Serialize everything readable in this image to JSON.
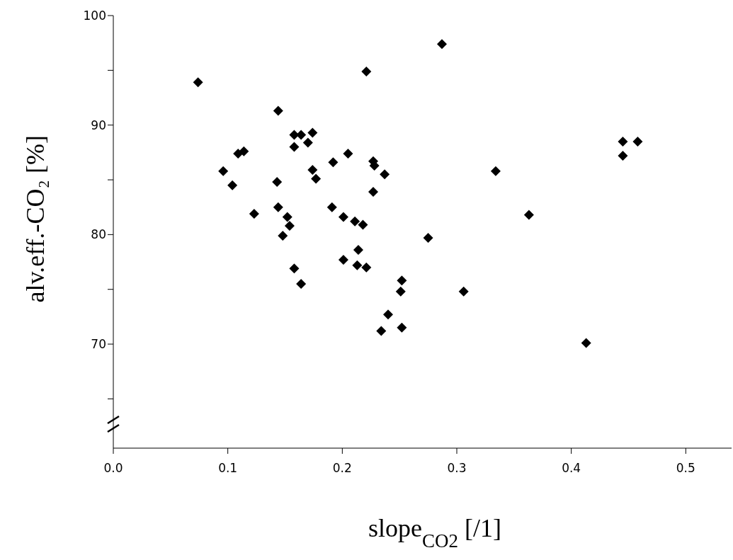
{
  "chart_data": {
    "type": "scatter",
    "xlabel": "slope$_{CO2}$ [/1]",
    "ylabel": "alv.eff.-CO₂ [%]",
    "x": [
      0.074,
      0.221,
      0.144,
      0.158,
      0.164,
      0.174,
      0.17,
      0.158,
      0.114,
      0.109,
      0.205,
      0.192,
      0.227,
      0.228,
      0.237,
      0.096,
      0.104,
      0.143,
      0.174,
      0.177,
      0.227,
      0.123,
      0.144,
      0.152,
      0.154,
      0.148,
      0.191,
      0.201,
      0.211,
      0.218,
      0.214,
      0.201,
      0.213,
      0.221,
      0.158,
      0.164,
      0.252,
      0.251,
      0.24,
      0.234,
      0.252,
      0.287,
      0.445,
      0.458,
      0.445,
      0.334,
      0.363,
      0.275,
      0.306,
      0.413
    ],
    "values": [
      93.9,
      94.9,
      91.3,
      89.1,
      89.1,
      89.3,
      88.4,
      88.0,
      87.6,
      87.4,
      87.4,
      86.6,
      86.7,
      86.3,
      85.5,
      85.8,
      84.5,
      84.8,
      85.9,
      85.1,
      83.9,
      81.9,
      82.5,
      81.6,
      80.8,
      79.9,
      82.5,
      81.6,
      81.2,
      80.9,
      78.6,
      77.7,
      77.2,
      77.0,
      76.9,
      75.5,
      75.8,
      74.8,
      72.7,
      71.2,
      71.5,
      97.4,
      88.5,
      88.5,
      87.2,
      85.8,
      81.8,
      79.7,
      74.8,
      70.1
    ],
    "color": "#000000",
    "marker": "diamond",
    "grid": false,
    "legend": false,
    "xlim": [
      0,
      0.54
    ],
    "xticks": [
      {
        "value": 0,
        "label": "0.0"
      },
      0.1,
      0.2,
      0.3,
      0.4,
      0.5
    ],
    "ylim": [
      60.5,
      100
    ],
    "yticks": [
      {
        "value": 65,
        "label": null
      },
      70,
      {
        "value": 75,
        "label": null
      },
      80,
      {
        "value": 85,
        "label": null
      },
      90,
      {
        "value": 95,
        "label": null
      },
      100
    ]
  }
}
